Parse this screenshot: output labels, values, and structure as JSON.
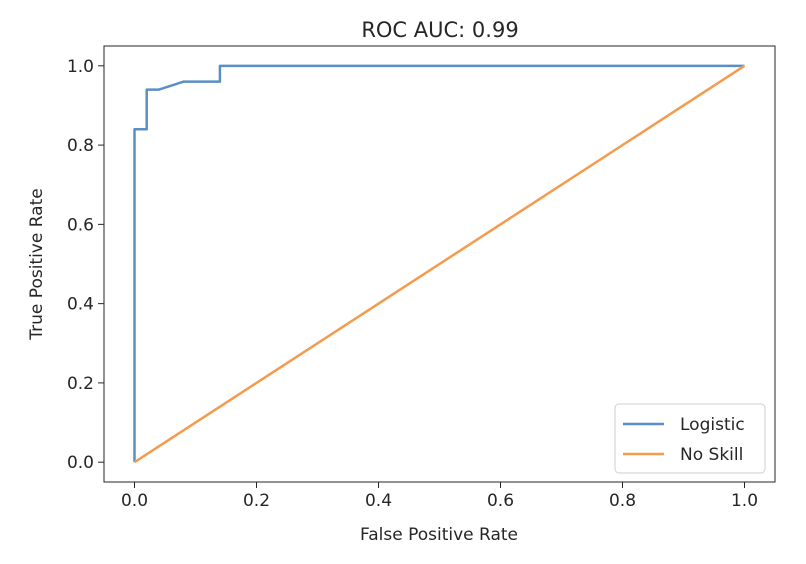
{
  "chart_data": {
    "type": "line",
    "title": "ROC AUC: 0.99",
    "xlabel": "False Positive Rate",
    "ylabel": "True Positive Rate",
    "xlim": [
      -0.05,
      1.05
    ],
    "ylim": [
      -0.05,
      1.05
    ],
    "xticks": [
      0.0,
      0.2,
      0.4,
      0.6,
      0.8,
      1.0
    ],
    "yticks": [
      0.0,
      0.2,
      0.4,
      0.6,
      0.8,
      1.0
    ],
    "xtick_labels": [
      "0.0",
      "0.2",
      "0.4",
      "0.6",
      "0.8",
      "1.0"
    ],
    "ytick_labels": [
      "0.0",
      "0.2",
      "0.4",
      "0.6",
      "0.8",
      "1.0"
    ],
    "grid": false,
    "legend_position": "lower-right",
    "series": [
      {
        "name": "Logistic",
        "color": "#5a8fc6",
        "x": [
          0.0,
          0.0,
          0.0,
          0.02,
          0.02,
          0.04,
          0.06,
          0.08,
          0.14,
          0.14,
          1.0
        ],
        "y": [
          0.0,
          0.84,
          0.84,
          0.84,
          0.94,
          0.94,
          0.95,
          0.96,
          0.96,
          1.0,
          1.0
        ]
      },
      {
        "name": "No Skill",
        "color": "#f59b4e",
        "x": [
          0.0,
          1.0
        ],
        "y": [
          0.0,
          1.0
        ]
      }
    ]
  }
}
